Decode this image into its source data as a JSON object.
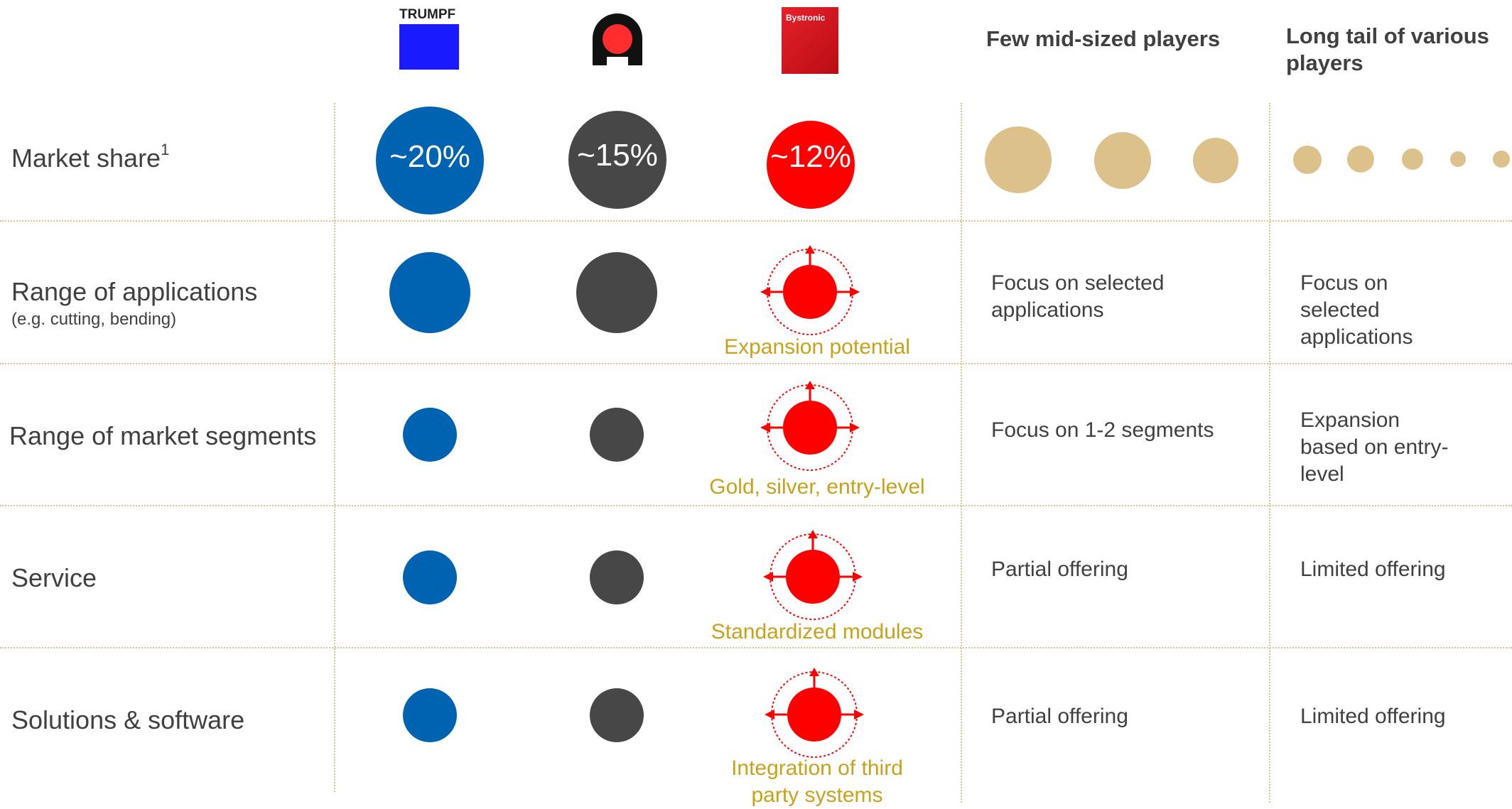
{
  "logos": {
    "trumpf": {
      "text": "TRUMPF",
      "color": "#1a1aff"
    },
    "amada": {
      "color": "#ff2d2d"
    },
    "bystronic": {
      "text": "Bystronic",
      "color": "#e0101a"
    }
  },
  "headers": {
    "mid_sized": "Few mid-sized players",
    "long_tail": "Long tail of various players"
  },
  "rows": {
    "market_share": {
      "label": "Market share",
      "sup": "1"
    },
    "applications": {
      "label": "Range of applications",
      "sub": "(e.g. cutting, bending)"
    },
    "segments": {
      "label": "Range of market segments"
    },
    "service": {
      "label": "Service"
    },
    "solutions": {
      "label": "Solutions & software"
    }
  },
  "market_share": {
    "trumpf": "~20%",
    "amada": "~15%",
    "bystronic": "~12%"
  },
  "bystronic_notes": {
    "applications": "Expansion potential",
    "segments": "Gold, silver, entry-level",
    "service": "Standardized modules",
    "solutions_1": "Integration of third",
    "solutions_2": "party systems"
  },
  "mid_sized": {
    "applications_1": "Focus on selected",
    "applications_2": "applications",
    "segments": "Focus on 1-2 segments",
    "service": "Partial offering",
    "solutions": "Partial offering"
  },
  "long_tail": {
    "applications_1": "Focus on",
    "applications_2": "selected",
    "applications_3": "applications",
    "segments_1": "Expansion",
    "segments_2": "based on entry-",
    "segments_3": "level",
    "service": "Limited offering",
    "solutions": "Limited offering"
  },
  "colors": {
    "trumpf_blue": "#0063b2",
    "amada_grey": "#474747",
    "bystronic_red": "#ff0000",
    "others_tan": "#dcc18a",
    "note_gold": "#c9a11a"
  }
}
